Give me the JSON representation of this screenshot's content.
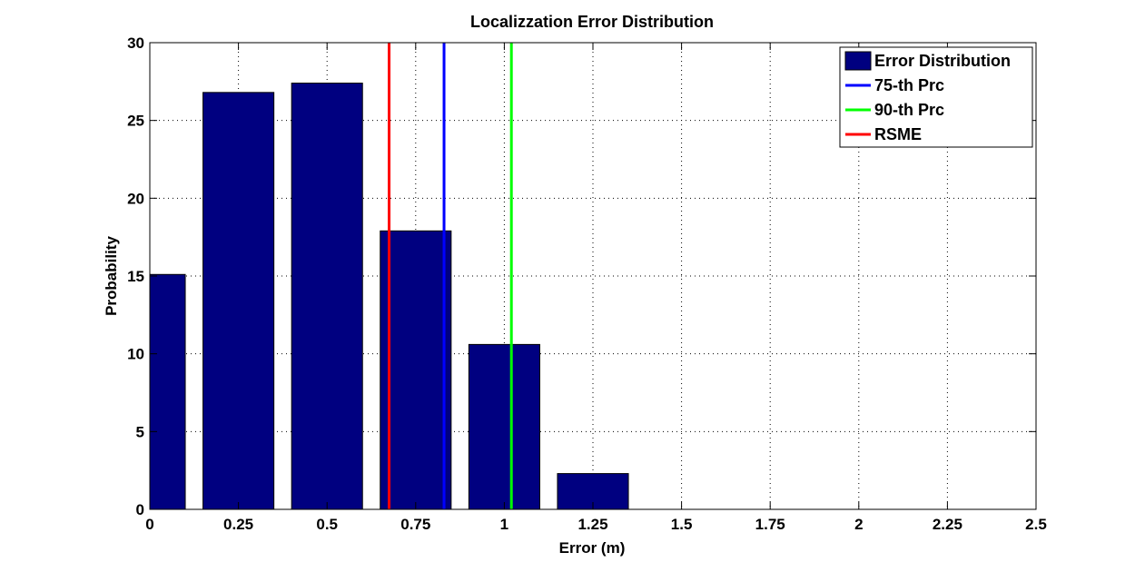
{
  "chart_data": {
    "type": "bar",
    "title": "Localizzation Error Distribution",
    "xlabel": "Error (m)",
    "ylabel": "Probability",
    "xlim": [
      0,
      2.5
    ],
    "ylim": [
      0,
      30
    ],
    "x_ticks": [
      0,
      0.25,
      0.5,
      0.75,
      1,
      1.25,
      1.5,
      1.75,
      2,
      2.25,
      2.5
    ],
    "x_tick_labels": [
      "0",
      "0.25",
      "0.5",
      "0.75",
      "1",
      "1.25",
      "1.5",
      "1.75",
      "2",
      "2.25",
      "2.5"
    ],
    "y_ticks": [
      0,
      5,
      10,
      15,
      20,
      25,
      30
    ],
    "y_tick_labels": [
      "0",
      "5",
      "10",
      "15",
      "20",
      "25",
      "30"
    ],
    "grid": true,
    "bar_width": 0.2,
    "series": [
      {
        "name": "Error Distribution",
        "color": "#000080",
        "x": [
          0,
          0.25,
          0.5,
          0.75,
          1,
          1.25
        ],
        "values": [
          15.1,
          26.8,
          27.4,
          17.9,
          10.6,
          2.3
        ]
      }
    ],
    "vertical_lines": [
      {
        "name": "75-th Prc",
        "x": 0.83,
        "color": "#0000ff"
      },
      {
        "name": "90-th Prc",
        "x": 1.02,
        "color": "#00ff00"
      },
      {
        "name": "RSME",
        "x": 0.675,
        "color": "#ff0000"
      }
    ],
    "legend": {
      "position": "top-right",
      "entries": [
        {
          "label": "Error Distribution",
          "kind": "patch",
          "color": "#000080"
        },
        {
          "label": "75-th Prc",
          "kind": "line",
          "color": "#0000ff"
        },
        {
          "label": "90-th Prc",
          "kind": "line",
          "color": "#00ff00"
        },
        {
          "label": "RSME",
          "kind": "line",
          "color": "#ff0000"
        }
      ]
    }
  }
}
